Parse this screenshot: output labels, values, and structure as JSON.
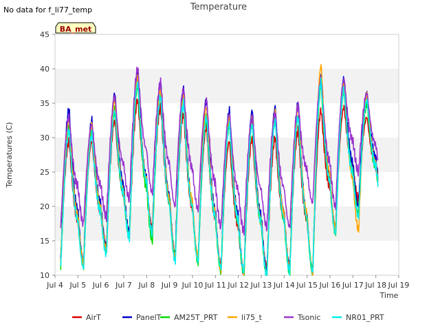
{
  "chart_data": {
    "type": "line",
    "title": "Temperature",
    "no_data_note": "No data for f_li77_temp",
    "badge": "BA_met",
    "xlabel": "Time",
    "ylabel": "Temperatures (C)",
    "ylim": [
      10,
      45
    ],
    "xlim": [
      4,
      19
    ],
    "y_ticks": [
      10,
      15,
      20,
      25,
      30,
      35,
      40,
      45
    ],
    "x_ticks": [
      {
        "v": 4,
        "label": "Jul 4"
      },
      {
        "v": 5,
        "label": "Jul 5"
      },
      {
        "v": 6,
        "label": "Jul 6"
      },
      {
        "v": 7,
        "label": "Jul 7"
      },
      {
        "v": 8,
        "label": "Jul 8"
      },
      {
        "v": 9,
        "label": "Jul 9"
      },
      {
        "v": 10,
        "label": "Jul 10"
      },
      {
        "v": 11,
        "label": "Jul 11"
      },
      {
        "v": 12,
        "label": "Jul 12"
      },
      {
        "v": 13,
        "label": "Jul 13"
      },
      {
        "v": 14,
        "label": "Jul 14"
      },
      {
        "v": 15,
        "label": "Jul 15"
      },
      {
        "v": 16,
        "label": "Jul 16"
      },
      {
        "v": 17,
        "label": "Jul 17"
      },
      {
        "v": 18,
        "label": "Jul 18"
      },
      {
        "v": 19,
        "label": "Jul 19"
      }
    ],
    "x_range_plotted": [
      4.25,
      18.1
    ],
    "legend_position": "bottom",
    "grid": "alternating horizontal bands",
    "band_color": "#f2f2f2",
    "days": [
      4,
      5,
      6,
      7,
      8,
      9,
      10,
      11,
      12,
      13,
      14,
      15,
      16,
      17,
      18
    ],
    "series": [
      {
        "name": "AirT",
        "color": "#dd0000",
        "daily_min": [
          12.0,
          12.0,
          14.0,
          16.0,
          17.0,
          13.0,
          12.5,
          11.5,
          10.5,
          11.0,
          11.5,
          11.0,
          17.0,
          21.0,
          22.0
        ],
        "daily_max": [
          29.5,
          29.5,
          32.5,
          35.5,
          34.5,
          33.5,
          31.5,
          29.5,
          30.0,
          30.0,
          31.0,
          34.0,
          34.5,
          33.0,
          33.0
        ]
      },
      {
        "name": "PanelT",
        "color": "#0000cc",
        "daily_min": [
          12.0,
          12.0,
          14.0,
          16.0,
          16.0,
          13.0,
          12.0,
          11.0,
          10.5,
          10.5,
          11.0,
          10.5,
          16.5,
          20.0,
          22.0
        ],
        "daily_max": [
          34.0,
          32.5,
          36.5,
          39.5,
          38.0,
          37.0,
          35.5,
          34.0,
          34.0,
          34.5,
          35.0,
          38.5,
          38.5,
          36.5,
          36.0
        ]
      },
      {
        "name": "AM25T_PRT",
        "color": "#00dd00",
        "daily_min": [
          11.5,
          11.5,
          13.5,
          15.5,
          15.0,
          12.5,
          12.0,
          10.5,
          10.0,
          10.0,
          10.5,
          10.5,
          16.0,
          19.0,
          21.0
        ],
        "daily_max": [
          31.5,
          31.0,
          34.0,
          37.5,
          36.0,
          35.0,
          33.0,
          32.0,
          32.0,
          32.5,
          33.0,
          37.5,
          37.0,
          35.0,
          35.0
        ]
      },
      {
        "name": "li75_t",
        "color": "#ffa500",
        "daily_min": [
          11.5,
          11.5,
          13.5,
          15.5,
          16.0,
          12.5,
          12.5,
          11.0,
          10.5,
          10.0,
          11.0,
          10.5,
          16.5,
          16.5,
          21.5
        ],
        "daily_max": [
          32.5,
          32.0,
          35.5,
          38.5,
          37.0,
          36.0,
          34.5,
          33.0,
          33.0,
          33.5,
          34.5,
          40.5,
          38.0,
          36.0,
          35.5
        ]
      },
      {
        "name": "Tsonic",
        "color": "#9a32cd",
        "daily_min": [
          17.0,
          17.5,
          18.5,
          21.0,
          22.0,
          20.0,
          19.5,
          17.0,
          16.5,
          17.0,
          17.0,
          20.5,
          20.0,
          25.0,
          25.0
        ],
        "daily_max": [
          33.0,
          32.0,
          36.0,
          40.0,
          38.0,
          37.0,
          35.5,
          33.5,
          33.0,
          33.5,
          34.5,
          38.5,
          38.5,
          36.5,
          36.0
        ]
      },
      {
        "name": "NR01_PRT",
        "color": "#00eeee",
        "daily_min": [
          11.0,
          11.0,
          13.0,
          15.5,
          16.0,
          12.0,
          12.0,
          11.0,
          10.5,
          10.0,
          10.5,
          10.5,
          16.0,
          18.5,
          21.0
        ],
        "daily_max": [
          31.0,
          30.5,
          34.0,
          38.0,
          36.0,
          35.0,
          33.0,
          32.0,
          32.0,
          32.5,
          33.0,
          38.0,
          37.0,
          35.5,
          35.0
        ]
      }
    ]
  }
}
